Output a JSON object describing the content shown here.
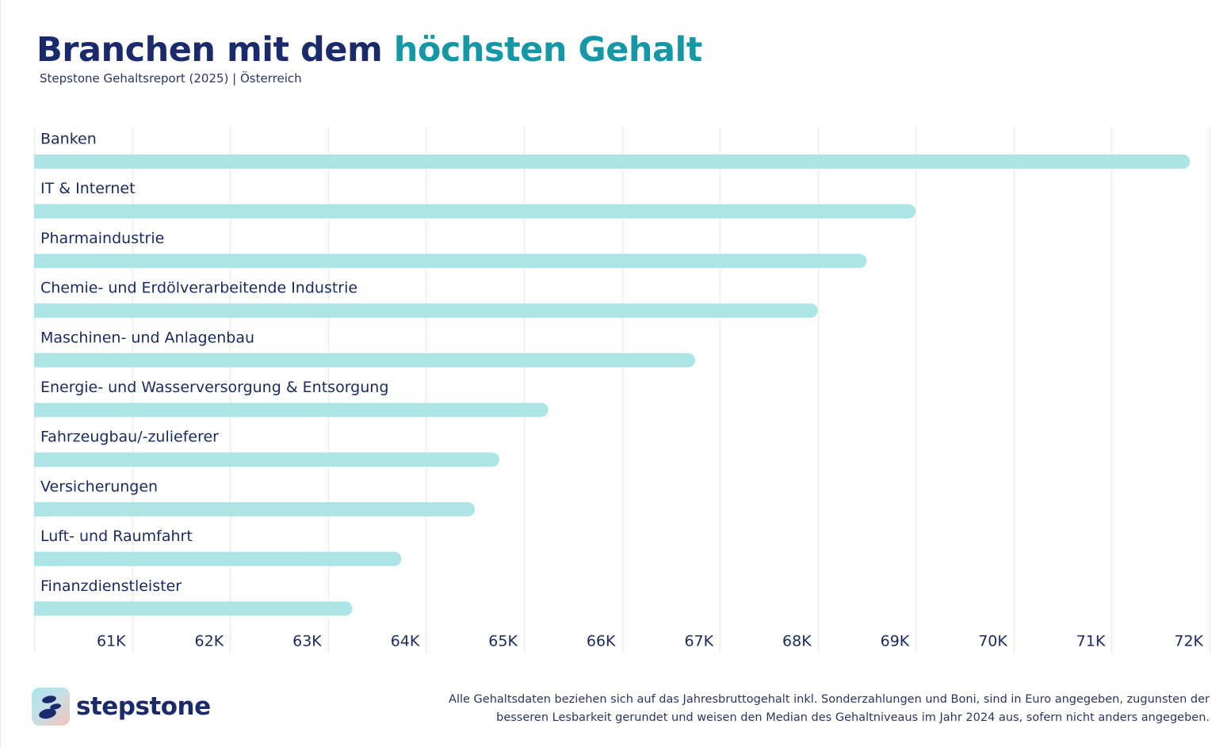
{
  "header": {
    "title_part1": "Branchen mit dem",
    "title_part2": "höchsten Gehalt",
    "subtitle": "Stepstone Gehaltsreport (2025) | Österreich"
  },
  "chart_data": {
    "type": "bar",
    "orientation": "horizontal",
    "categories": [
      "Banken",
      "IT & Internet",
      "Pharmaindustrie",
      "Chemie- und Erdölverarbeitende Industrie",
      "Maschinen- und Anlagenbau",
      "Energie- und Wasserversorgung & Entsorgung",
      "Fahrzeugbau/-zulieferer",
      "Versicherungen",
      "Luft- und Raumfahrt",
      "Finanzdienstleister"
    ],
    "values": [
      71800,
      69000,
      68500,
      68000,
      66750,
      65250,
      64750,
      64500,
      63750,
      63250
    ],
    "xlim": [
      60000,
      72000
    ],
    "xticks": [
      61000,
      62000,
      63000,
      64000,
      65000,
      66000,
      67000,
      68000,
      69000,
      70000,
      71000,
      72000
    ],
    "xtick_labels": [
      "61K",
      "62K",
      "63K",
      "64K",
      "65K",
      "66K",
      "67K",
      "68K",
      "69K",
      "70K",
      "71K",
      "72K"
    ],
    "grid": true,
    "colors": {
      "bar": "#ade4e5",
      "grid": "#eeeee6",
      "label": "#1a2a5e",
      "title": "#1b2a6b",
      "accent": "#1597a6"
    }
  },
  "footer": {
    "logo_text": "stepstone",
    "note_line1": "Alle Gehaltsdaten beziehen sich auf das Jahresbruttogehalt inkl. Sonderzahlungen und Boni, sind in Euro angegeben, zugunsten der",
    "note_line2": "besseren Lesbarkeit gerundet und weisen den Median des Gehaltniveaus im Jahr 2024 aus, sofern nicht anders angegeben."
  }
}
